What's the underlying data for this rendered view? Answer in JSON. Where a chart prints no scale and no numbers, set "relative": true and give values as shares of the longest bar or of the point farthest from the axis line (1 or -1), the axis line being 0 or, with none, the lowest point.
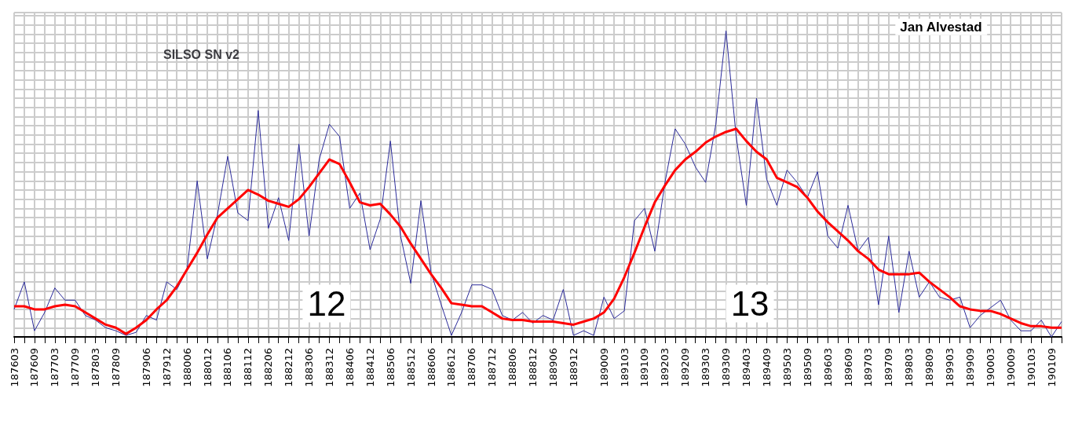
{
  "chart_data": {
    "type": "line",
    "title": "SILSO SN v2",
    "relative": true,
    "grid": true,
    "annotations": [
      "12",
      "13",
      "Jan Alvestad"
    ],
    "categories": [
      "187603",
      null,
      "187609",
      null,
      "187703",
      null,
      "187709",
      null,
      "187803",
      null,
      "187809",
      null,
      null,
      "187906",
      null,
      "187912",
      null,
      "188006",
      null,
      "188012",
      null,
      "188106",
      null,
      "188112",
      null,
      "188206",
      null,
      "188212",
      null,
      "188306",
      null,
      "188312",
      null,
      "188406",
      null,
      "188412",
      null,
      "188506",
      null,
      "188512",
      null,
      "188606",
      null,
      "188612",
      null,
      "188706",
      null,
      "188712",
      null,
      "188806",
      null,
      "188812",
      null,
      "188906",
      null,
      "188912",
      null,
      null,
      "189009",
      null,
      "189103",
      null,
      "189109",
      null,
      "189203",
      null,
      "189209",
      null,
      "189303",
      null,
      "189309",
      null,
      "189403",
      null,
      "189409",
      null,
      "189503",
      null,
      "189509",
      null,
      "189603",
      null,
      "189609",
      null,
      "189703",
      null,
      "189709",
      null,
      "189803",
      null,
      "189809",
      null,
      "189903",
      null,
      "189909",
      null,
      "190003",
      null,
      "190009",
      null,
      "190103",
      null,
      "190109",
      null
    ],
    "series": [
      {
        "color": "#2b2b9a",
        "values": [
          0.09,
          0.18,
          0.02,
          0.08,
          0.16,
          0.12,
          0.12,
          0.07,
          0.055,
          0.03,
          0.02,
          0.005,
          0.015,
          0.07,
          0.055,
          0.18,
          0.155,
          0.22,
          0.51,
          0.255,
          0.4,
          0.59,
          0.405,
          0.38,
          0.74,
          0.355,
          0.455,
          0.315,
          0.63,
          0.33,
          0.58,
          0.695,
          0.655,
          0.42,
          0.47,
          0.285,
          0.385,
          0.64,
          0.33,
          0.175,
          0.445,
          0.21,
          0.105,
          0.005,
          0.08,
          0.17,
          0.17,
          0.155,
          0.07,
          0.055,
          0.08,
          0.045,
          0.07,
          0.055,
          0.155,
          0.005,
          0.02,
          0.005,
          0.13,
          0.06,
          0.085,
          0.38,
          0.42,
          0.28,
          0.505,
          0.68,
          0.63,
          0.555,
          0.505,
          0.695,
          1,
          0.655,
          0.43,
          0.78,
          0.515,
          0.43,
          0.545,
          0.505,
          0.455,
          0.54,
          0.33,
          0.29,
          0.43,
          0.28,
          0.325,
          0.105,
          0.33,
          0.08,
          0.28,
          0.13,
          0.18,
          0.13,
          0.12,
          0.13,
          0.03,
          0.07,
          0.095,
          0.12,
          0.055,
          0.02,
          0.02,
          0.055,
          0,
          0.05
        ]
      },
      {
        "color": "#ff0000",
        "values": [
          0.1,
          0.1,
          0.09,
          0.09,
          0.1,
          0.105,
          0.1,
          0.08,
          0.06,
          0.04,
          0.03,
          0.01,
          0.03,
          0.055,
          0.09,
          0.12,
          0.165,
          0.22,
          0.275,
          0.335,
          0.39,
          0.42,
          0.45,
          0.48,
          0.465,
          0.445,
          0.435,
          0.425,
          0.45,
          0.49,
          0.535,
          0.58,
          0.565,
          0.505,
          0.44,
          0.43,
          0.435,
          0.4,
          0.36,
          0.305,
          0.255,
          0.205,
          0.16,
          0.11,
          0.105,
          0.1,
          0.1,
          0.08,
          0.06,
          0.055,
          0.055,
          0.05,
          0.05,
          0.05,
          0.045,
          0.04,
          0.05,
          0.06,
          0.08,
          0.125,
          0.195,
          0.275,
          0.36,
          0.44,
          0.495,
          0.545,
          0.58,
          0.605,
          0.635,
          0.655,
          0.67,
          0.68,
          0.64,
          0.605,
          0.58,
          0.52,
          0.505,
          0.49,
          0.455,
          0.41,
          0.375,
          0.345,
          0.315,
          0.28,
          0.255,
          0.22,
          0.205,
          0.205,
          0.205,
          0.21,
          0.18,
          0.155,
          0.13,
          0.1,
          0.09,
          0.085,
          0.085,
          0.075,
          0.06,
          0.045,
          0.035,
          0.035,
          0.03,
          0.03
        ]
      }
    ]
  }
}
